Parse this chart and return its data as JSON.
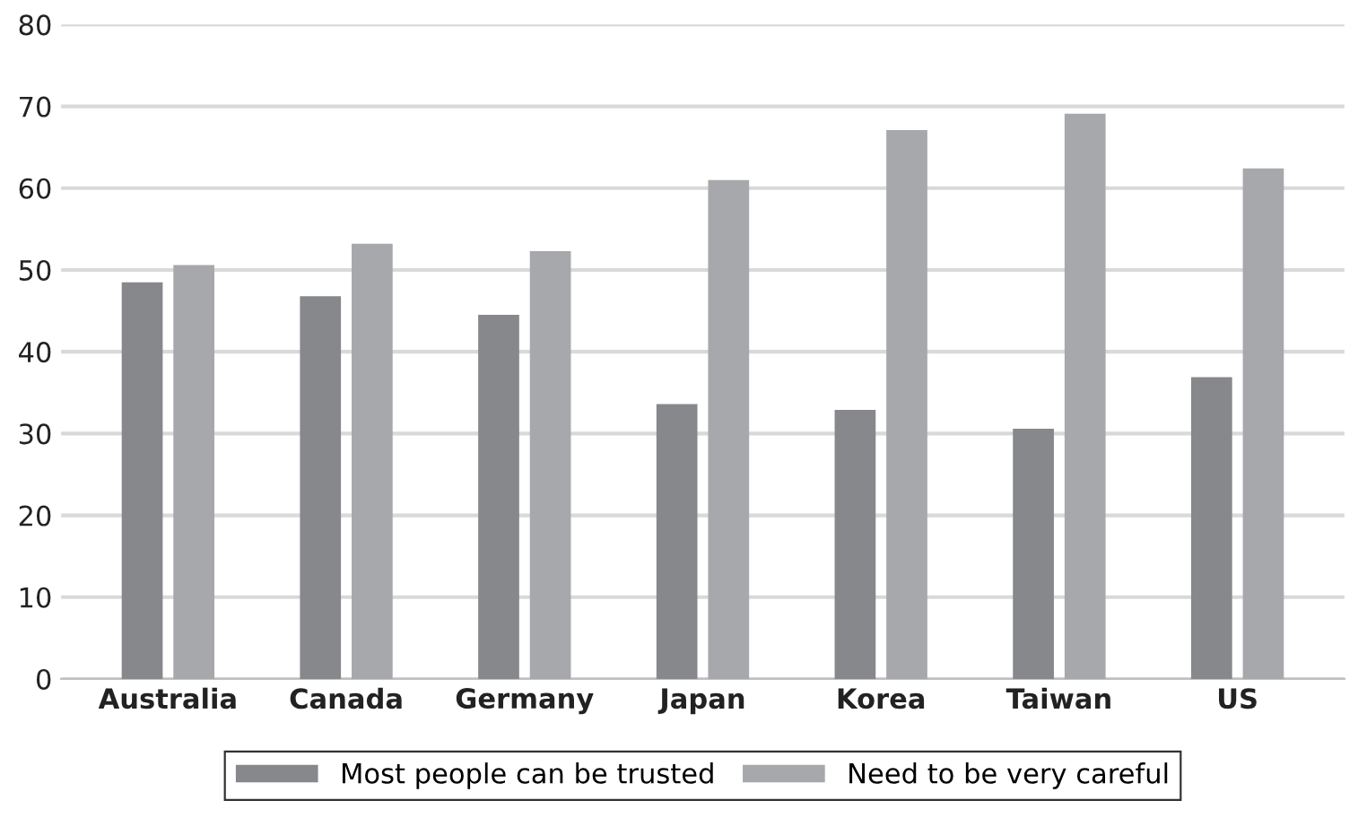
{
  "chart_data": {
    "type": "bar",
    "categories": [
      "Australia",
      "Canada",
      "Germany",
      "Japan",
      "Korea",
      "Taiwan",
      "US"
    ],
    "series": [
      {
        "name": "Most people can be trusted",
        "color": "#87888c",
        "values": [
          48.5,
          46.8,
          44.5,
          33.6,
          32.9,
          30.6,
          36.9
        ]
      },
      {
        "name": "Need to be very careful",
        "color": "#a7a8ab",
        "values": [
          50.6,
          53.2,
          52.3,
          61.0,
          67.1,
          69.1,
          62.4
        ]
      }
    ],
    "ylim": [
      0,
      80
    ],
    "yticks": [
      0,
      10,
      20,
      30,
      40,
      50,
      60,
      70,
      80
    ],
    "grid": "y",
    "legend": "bottom"
  }
}
